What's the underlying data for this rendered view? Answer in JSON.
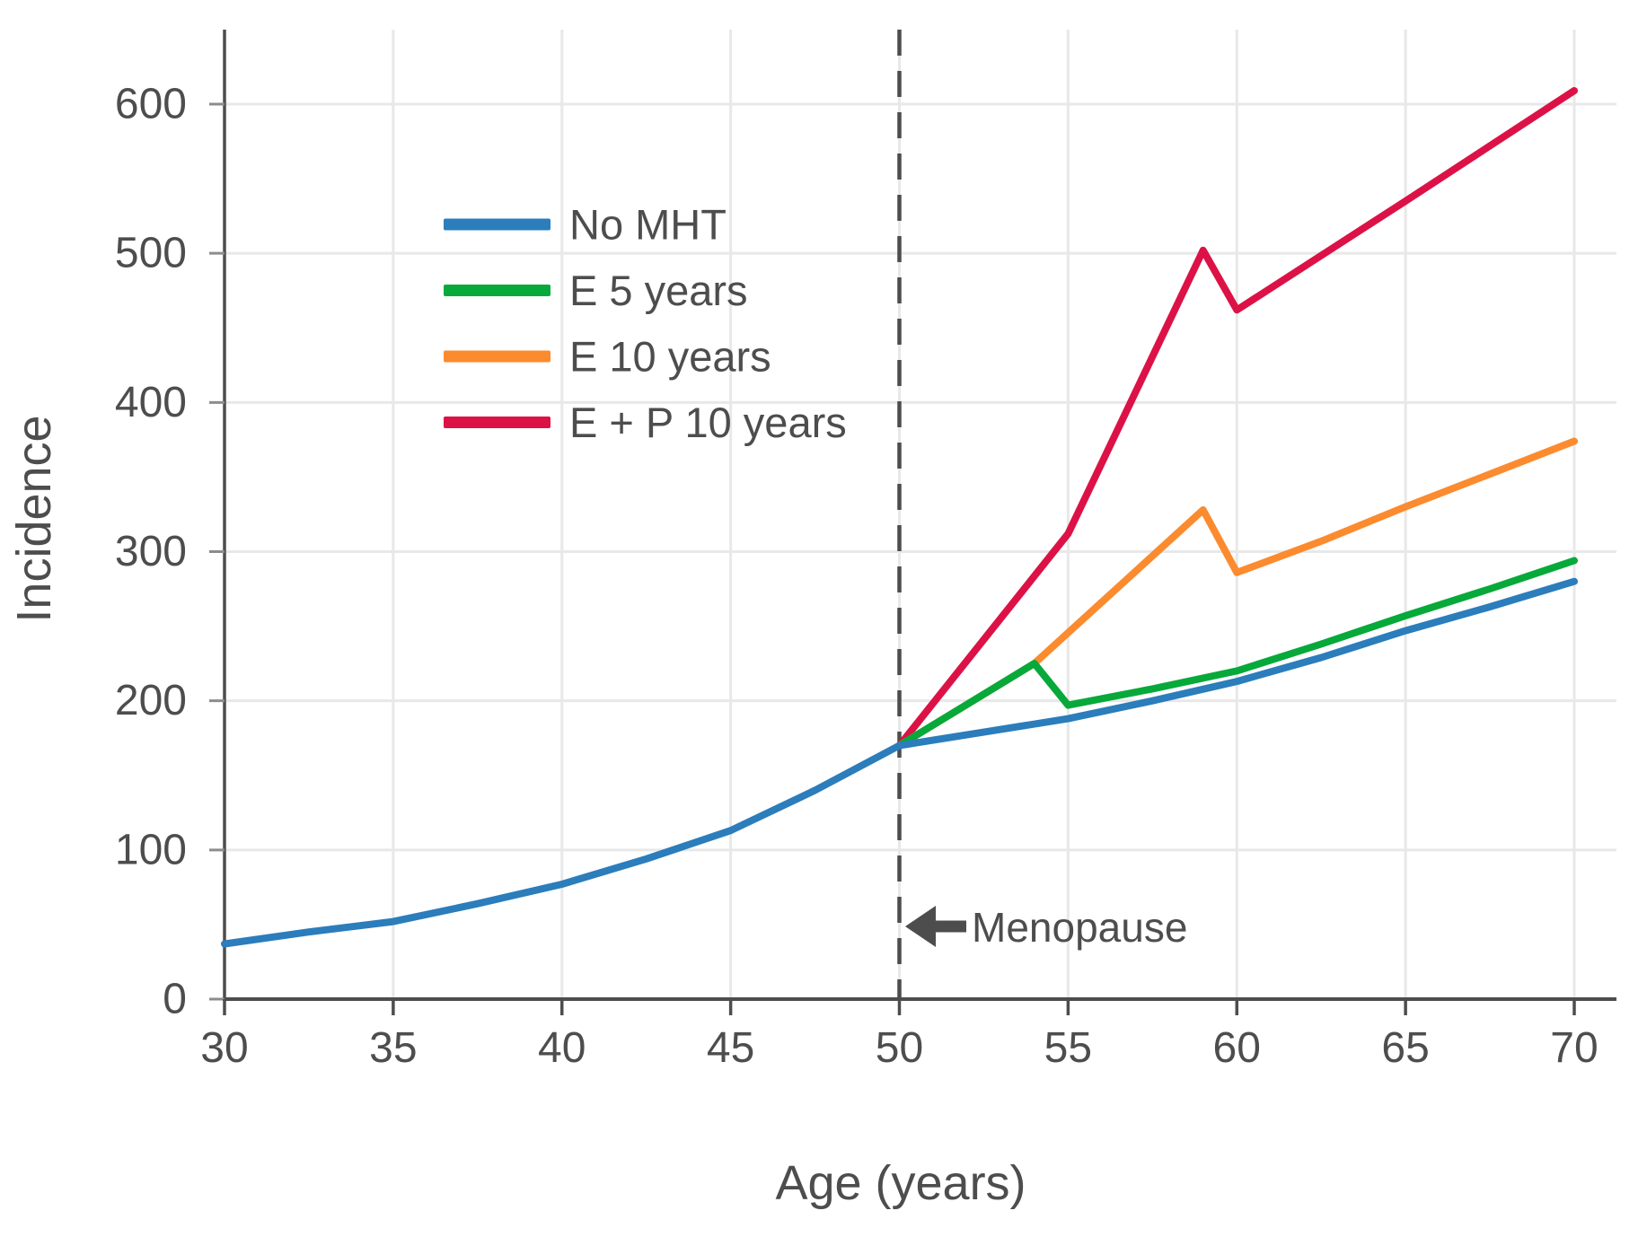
{
  "chart_data": {
    "type": "line",
    "title": "",
    "xlabel": "Age (years)",
    "ylabel": "Incidence",
    "xlim": [
      30,
      70
    ],
    "ylim": [
      0,
      650
    ],
    "x_ticks": [
      30,
      35,
      40,
      45,
      50,
      55,
      60,
      65,
      70
    ],
    "y_ticks": [
      0,
      100,
      200,
      300,
      400,
      500,
      600
    ],
    "grid": true,
    "legend_position": "upper-left-inside",
    "annotation": {
      "text": "Menopause",
      "arrow_direction": "left",
      "at_age": 50
    },
    "menopause_line_age": 50,
    "series": [
      {
        "name": "No MHT",
        "color": "#2b7dbb",
        "points": [
          [
            30,
            37
          ],
          [
            32.5,
            45
          ],
          [
            35,
            52
          ],
          [
            37.5,
            64
          ],
          [
            40,
            77
          ],
          [
            42.5,
            94
          ],
          [
            45,
            113
          ],
          [
            47.5,
            140
          ],
          [
            50,
            170
          ],
          [
            52.5,
            179
          ],
          [
            55,
            188
          ],
          [
            57.5,
            200
          ],
          [
            60,
            213
          ],
          [
            62.5,
            229
          ],
          [
            65,
            247
          ],
          [
            67.5,
            263
          ],
          [
            70,
            280
          ]
        ]
      },
      {
        "name": "E 5 years",
        "color": "#07a93a",
        "points": [
          [
            50,
            170
          ],
          [
            54,
            225
          ],
          [
            55,
            197
          ],
          [
            57.5,
            208
          ],
          [
            60,
            220
          ],
          [
            62.5,
            238
          ],
          [
            65,
            257
          ],
          [
            67.5,
            275
          ],
          [
            70,
            294
          ]
        ]
      },
      {
        "name": "E 10 years",
        "color": "#fb8b2e",
        "points": [
          [
            50,
            170
          ],
          [
            54,
            225
          ],
          [
            59,
            328
          ],
          [
            60,
            286
          ],
          [
            62.5,
            307
          ],
          [
            65,
            330
          ],
          [
            67.5,
            352
          ],
          [
            70,
            374
          ]
        ]
      },
      {
        "name": "E + P 10 years",
        "color": "#dc1247",
        "points": [
          [
            50,
            170
          ],
          [
            55,
            312
          ],
          [
            59,
            502
          ],
          [
            60,
            462
          ],
          [
            65,
            535
          ],
          [
            70,
            609
          ]
        ]
      }
    ],
    "colors": {
      "grid": "#e8e8e8",
      "axis": "#4d4d4d",
      "tick_minor": "#8c8c8c",
      "text": "#4d4d4d",
      "dashed_line": "#4d4d4d",
      "arrow": "#4d4d4d"
    }
  }
}
